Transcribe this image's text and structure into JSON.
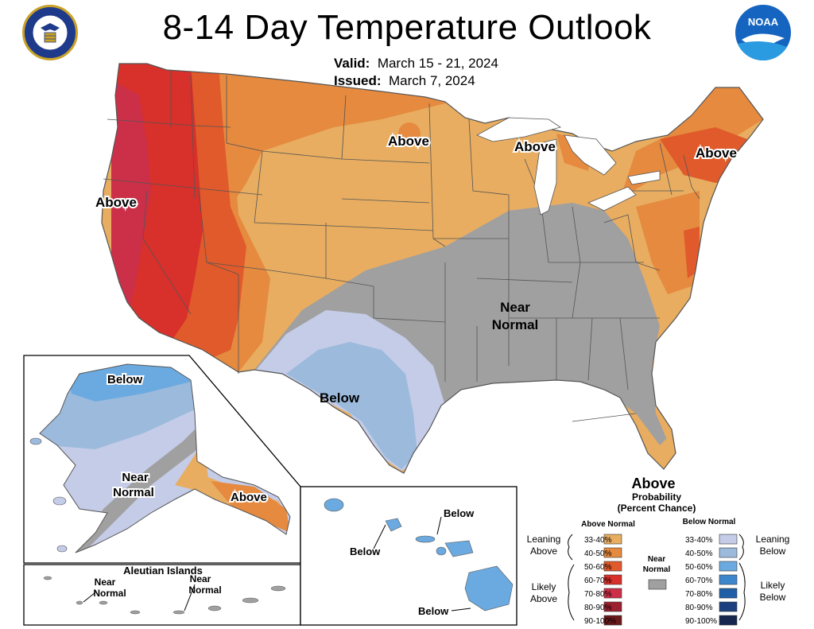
{
  "title": "8-14 Day Temperature Outlook",
  "valid": {
    "label": "Valid:",
    "value": "March 15 - 21, 2024"
  },
  "issued": {
    "label": "Issued:",
    "value": "March 7, 2024"
  },
  "logos": {
    "left": "doc-seal",
    "right": "noaa-logo",
    "noaa_text": "NOAA"
  },
  "region_labels": {
    "conus": [
      "Above",
      "Above",
      "Above",
      "Above",
      "Near",
      "Normal",
      "Below"
    ],
    "alaska": [
      "Below",
      "Near",
      "Normal",
      "Above"
    ],
    "aleutian_title": "Aleutian Islands",
    "aleutian": [
      "Near",
      "Normal",
      "Near",
      "Normal"
    ],
    "hawaii": [
      "Below",
      "Below",
      "Below"
    ]
  },
  "legend": {
    "heading": "Above",
    "subheading1": "Probability",
    "subheading2": "(Percent Chance)",
    "above_col_title": "Above Normal",
    "below_col_title": "Below Normal",
    "near_label1": "Near",
    "near_label2": "Normal",
    "leaning1": "Leaning",
    "above_word": "Above",
    "below_word": "Below",
    "likely1": "Likely",
    "above_bins": [
      {
        "range": "33-40%",
        "color": "#e8ad60"
      },
      {
        "range": "40-50%",
        "color": "#e58a3f"
      },
      {
        "range": "50-60%",
        "color": "#e05a2b"
      },
      {
        "range": "60-70%",
        "color": "#d8302a"
      },
      {
        "range": "70-80%",
        "color": "#cc2f48"
      },
      {
        "range": "80-90%",
        "color": "#9c2030"
      },
      {
        "range": "90-100%",
        "color": "#6b1a1a"
      }
    ],
    "below_bins": [
      {
        "range": "33-40%",
        "color": "#c4cce8"
      },
      {
        "range": "40-50%",
        "color": "#9cbadc"
      },
      {
        "range": "50-60%",
        "color": "#6baae0"
      },
      {
        "range": "60-70%",
        "color": "#3d86cc"
      },
      {
        "range": "70-80%",
        "color": "#1e5fa8"
      },
      {
        "range": "80-90%",
        "color": "#1c3f80"
      },
      {
        "range": "90-100%",
        "color": "#16264f"
      }
    ],
    "near_color": "#a0a0a0"
  },
  "colors": {
    "near": "#a0a0a0",
    "border": "#555555",
    "water": "#ffffff"
  }
}
